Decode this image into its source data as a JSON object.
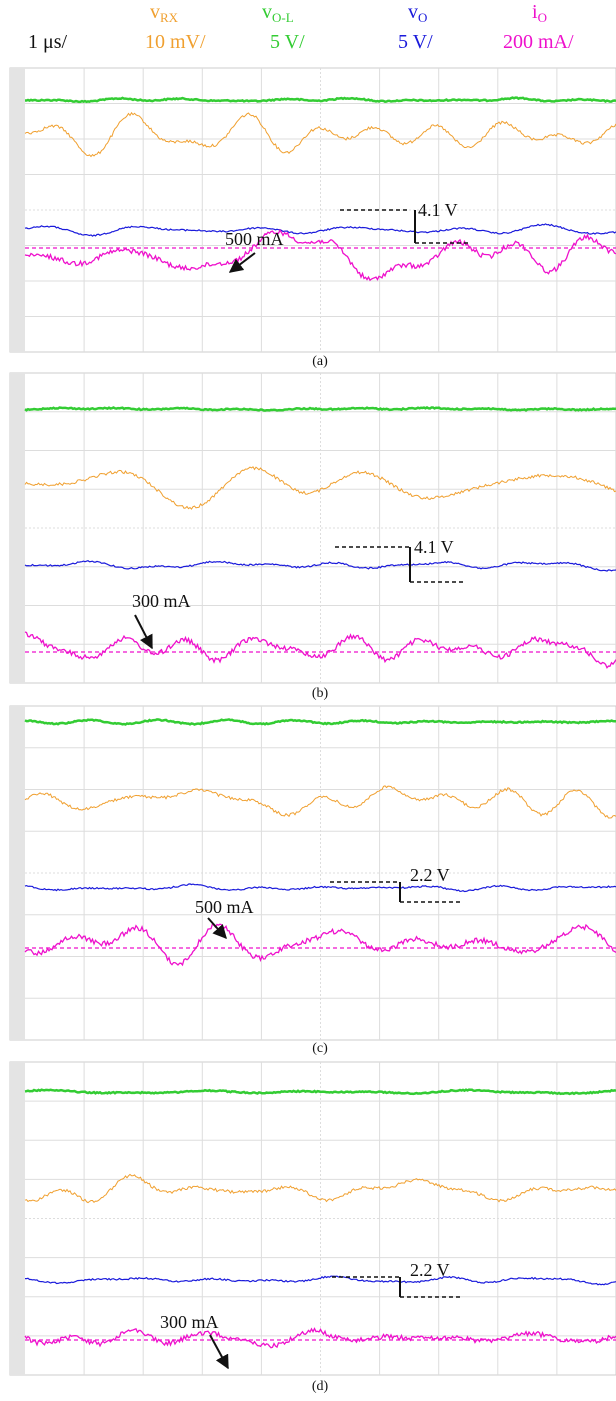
{
  "header": {
    "time_scale": "1 μs/",
    "channels": [
      {
        "symbol": "v",
        "subscript": "RX",
        "scale": "10 mV/",
        "color": "#f0a030"
      },
      {
        "symbol": "v",
        "subscript": "O-L",
        "scale": "5 V/",
        "color": "#33cc33"
      },
      {
        "symbol": "v",
        "subscript": "O",
        "scale": "5 V/",
        "color": "#1a1adb"
      },
      {
        "symbol": "i",
        "subscript": "O",
        "scale": "200 mA/",
        "color": "#ee11cc"
      }
    ]
  },
  "panels": [
    {
      "label": "(a)",
      "voltage_annotation": "4.1 V",
      "current_annotation": "500 mA"
    },
    {
      "label": "(b)",
      "voltage_annotation": "4.1 V",
      "current_annotation": "300 mA"
    },
    {
      "label": "(c)",
      "voltage_annotation": "2.2 V",
      "current_annotation": "500 mA"
    },
    {
      "label": "(d)",
      "voltage_annotation": "2.2 V",
      "current_annotation": "300 mA"
    }
  ]
}
